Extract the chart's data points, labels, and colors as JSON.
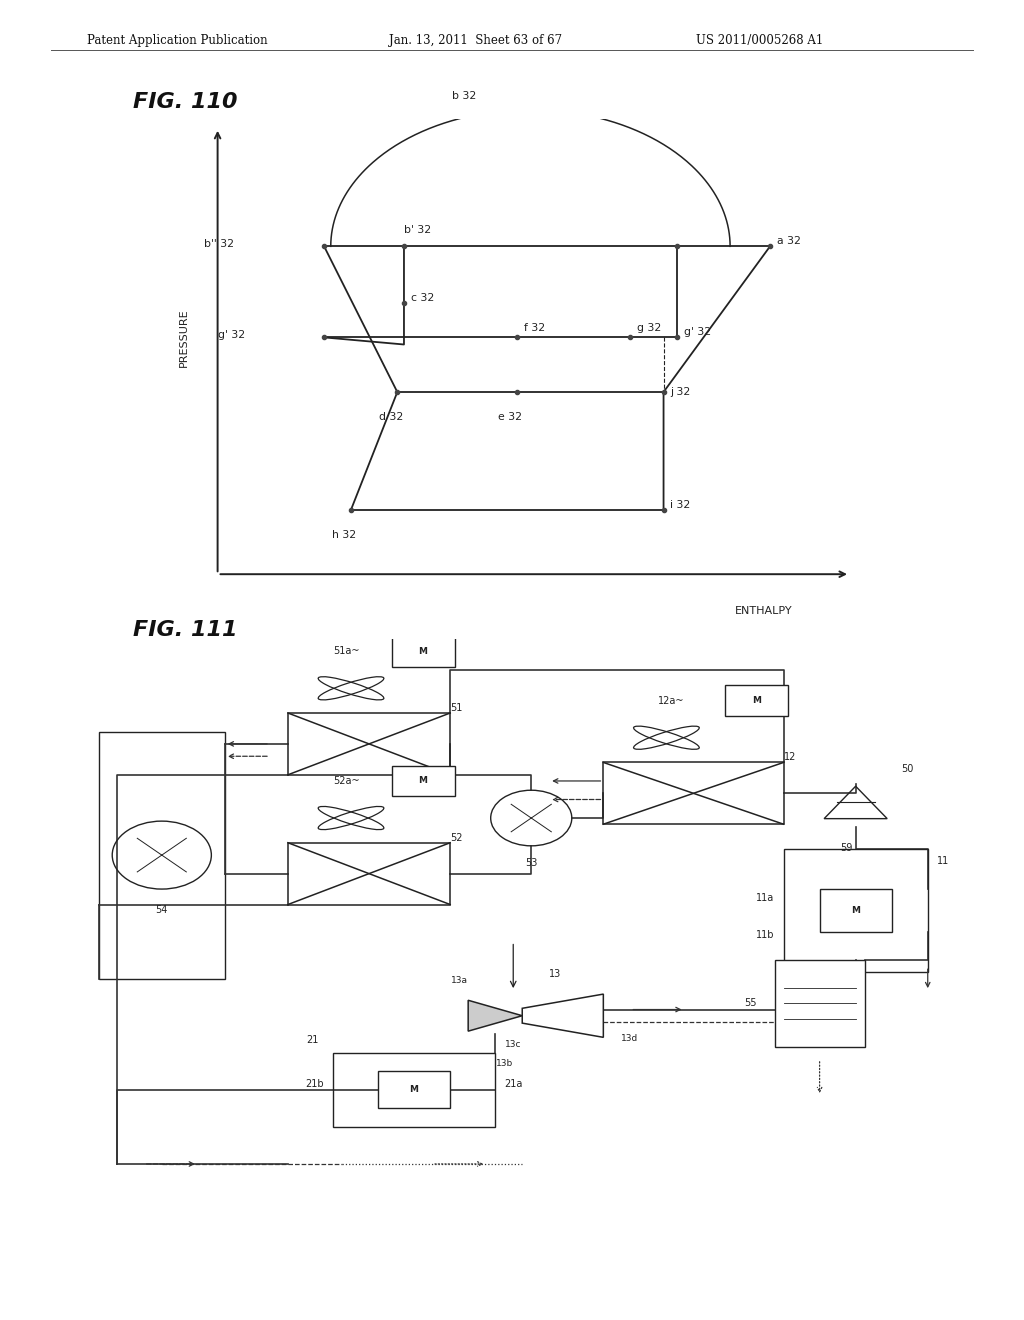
{
  "header_left": "Patent Application Publication",
  "header_mid": "Jan. 13, 2011  Sheet 63 of 67",
  "header_right": "US 2011/0005268 A1",
  "fig110_title": "FIG. 110",
  "fig111_title": "FIG. 111",
  "xlabel": "ENTHALPY",
  "ylabel": "PRESSURE",
  "bg_color": "#ffffff",
  "lc": "#222222"
}
